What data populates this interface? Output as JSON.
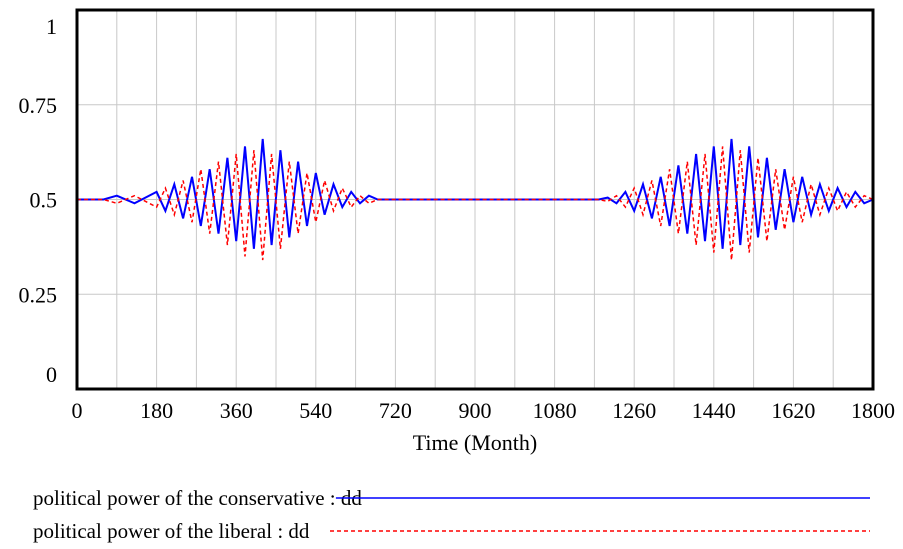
{
  "chart_data": {
    "type": "line",
    "title": "",
    "xlabel": "Time (Month)",
    "ylabel": "",
    "xlim": [
      0,
      1800
    ],
    "ylim": [
      0,
      1
    ],
    "x_ticks": [
      "0",
      "180",
      "360",
      "540",
      "720",
      "900",
      "1080",
      "1260",
      "1440",
      "1620",
      "1800"
    ],
    "y_ticks": [
      "0",
      "0.25",
      "0.5",
      "0.75",
      "1"
    ],
    "grid": true,
    "legend_position": "bottom",
    "series": [
      {
        "name": "political power of the conservative : dd",
        "color": "#0000ff",
        "style": "solid",
        "x": [
          0,
          60,
          90,
          130,
          180,
          200,
          220,
          240,
          260,
          280,
          300,
          320,
          340,
          360,
          380,
          400,
          420,
          440,
          460,
          480,
          500,
          520,
          540,
          560,
          580,
          600,
          620,
          640,
          660,
          680,
          720,
          900,
          1080,
          1180,
          1200,
          1220,
          1240,
          1260,
          1280,
          1300,
          1320,
          1340,
          1360,
          1380,
          1400,
          1420,
          1440,
          1460,
          1480,
          1500,
          1520,
          1540,
          1560,
          1580,
          1600,
          1620,
          1640,
          1660,
          1680,
          1700,
          1720,
          1740,
          1760,
          1780,
          1800
        ],
        "y": [
          0.5,
          0.5,
          0.51,
          0.49,
          0.52,
          0.47,
          0.54,
          0.45,
          0.56,
          0.43,
          0.58,
          0.41,
          0.61,
          0.39,
          0.64,
          0.37,
          0.66,
          0.38,
          0.63,
          0.4,
          0.6,
          0.43,
          0.57,
          0.46,
          0.54,
          0.48,
          0.52,
          0.49,
          0.51,
          0.5,
          0.5,
          0.5,
          0.5,
          0.5,
          0.505,
          0.49,
          0.52,
          0.47,
          0.54,
          0.45,
          0.56,
          0.43,
          0.59,
          0.41,
          0.62,
          0.39,
          0.64,
          0.37,
          0.66,
          0.38,
          0.64,
          0.4,
          0.61,
          0.42,
          0.58,
          0.44,
          0.56,
          0.46,
          0.54,
          0.47,
          0.53,
          0.48,
          0.52,
          0.49,
          0.5
        ]
      },
      {
        "name": "political power of the liberal : dd",
        "color": "#ff0000",
        "style": "dashed",
        "x": [
          0,
          60,
          90,
          130,
          180,
          200,
          220,
          240,
          260,
          280,
          300,
          320,
          340,
          360,
          380,
          400,
          420,
          440,
          460,
          480,
          500,
          520,
          540,
          560,
          580,
          600,
          620,
          640,
          660,
          680,
          720,
          900,
          1080,
          1180,
          1200,
          1220,
          1240,
          1260,
          1280,
          1300,
          1320,
          1340,
          1360,
          1380,
          1400,
          1420,
          1440,
          1460,
          1480,
          1500,
          1520,
          1540,
          1560,
          1580,
          1600,
          1620,
          1640,
          1660,
          1680,
          1700,
          1720,
          1740,
          1760,
          1780,
          1800
        ],
        "y": [
          0.5,
          0.5,
          0.49,
          0.51,
          0.48,
          0.53,
          0.46,
          0.55,
          0.44,
          0.58,
          0.41,
          0.6,
          0.38,
          0.62,
          0.35,
          0.63,
          0.34,
          0.62,
          0.37,
          0.6,
          0.41,
          0.57,
          0.44,
          0.55,
          0.47,
          0.53,
          0.48,
          0.51,
          0.49,
          0.5,
          0.5,
          0.5,
          0.5,
          0.5,
          0.495,
          0.51,
          0.48,
          0.53,
          0.46,
          0.55,
          0.43,
          0.58,
          0.41,
          0.6,
          0.38,
          0.62,
          0.36,
          0.64,
          0.34,
          0.63,
          0.36,
          0.61,
          0.39,
          0.58,
          0.42,
          0.56,
          0.44,
          0.54,
          0.46,
          0.53,
          0.47,
          0.52,
          0.48,
          0.51,
          0.5
        ]
      }
    ]
  }
}
